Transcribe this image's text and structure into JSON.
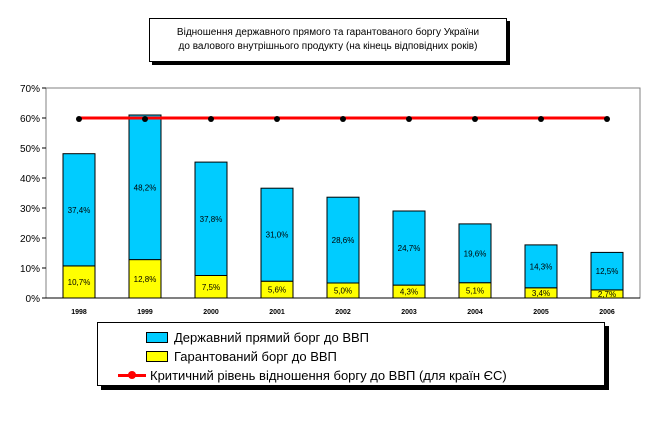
{
  "chart_data": {
    "type": "bar",
    "title_lines": [
      "Відношення державного прямого та гарантованого боргу України",
      "до валового внутрішнього продукту (на кінець відповідних років)"
    ],
    "categories": [
      "1998",
      "1999",
      "2000",
      "2001",
      "2002",
      "2003",
      "2004",
      "2005",
      "2006"
    ],
    "series": [
      {
        "name": "Гарантований борг до ВВП",
        "values": [
          10.7,
          12.8,
          7.5,
          5.6,
          5.0,
          4.3,
          5.1,
          3.4,
          2.7
        ],
        "labels": [
          "10,7%",
          "12,8%",
          "7,5%",
          "5,6%",
          "5,0%",
          "4,3%",
          "5,1%",
          "3,4%",
          "2,7%"
        ],
        "color": "#ffff00"
      },
      {
        "name": "Державний прямий борг до ВВП",
        "values": [
          37.4,
          48.2,
          37.8,
          31.0,
          28.6,
          24.7,
          19.6,
          14.3,
          12.5
        ],
        "labels": [
          "37,4%",
          "48,2%",
          "37,8%",
          "31,0%",
          "28,6%",
          "24,7%",
          "19,6%",
          "14,3%",
          "12,5%"
        ],
        "color": "#00ccff"
      }
    ],
    "line": {
      "name": "Критичний рівень відношення боргу до ВВП (для країн ЄС)",
      "value": 60,
      "color": "#ff0000"
    },
    "ylim": [
      0,
      70
    ],
    "yticks": [
      "0%",
      "10%",
      "20%",
      "30%",
      "40%",
      "50%",
      "60%",
      "70%"
    ],
    "stacked": true,
    "grid": false,
    "legend_placement": "bottom"
  }
}
